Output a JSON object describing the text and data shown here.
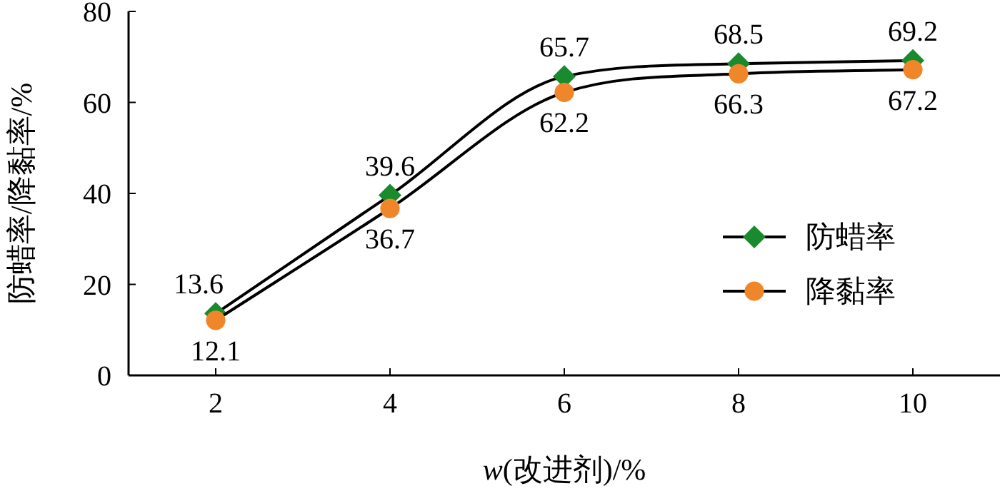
{
  "chart_data": {
    "type": "line",
    "xlabel": "*w*(改进剂)/%",
    "ylabel": "防蜡率/降黏率/%",
    "x": [
      2,
      4,
      6,
      8,
      10
    ],
    "series": [
      {
        "name": "防蜡率",
        "color": "#1a8a2e",
        "marker": "diamond",
        "values": [
          13.6,
          39.6,
          65.7,
          68.5,
          69.2
        ]
      },
      {
        "name": "降黏率",
        "color": "#f0862a",
        "marker": "circle",
        "values": [
          12.1,
          36.7,
          62.2,
          66.3,
          67.2
        ]
      }
    ],
    "xlim": [
      1,
      11
    ],
    "ylim": [
      0,
      80
    ],
    "xticks": [
      2,
      4,
      6,
      8,
      10
    ],
    "yticks": [
      0,
      20,
      40,
      60,
      80
    ],
    "grid": false,
    "legend": "right",
    "data_labels": true,
    "line_style": "solid"
  }
}
